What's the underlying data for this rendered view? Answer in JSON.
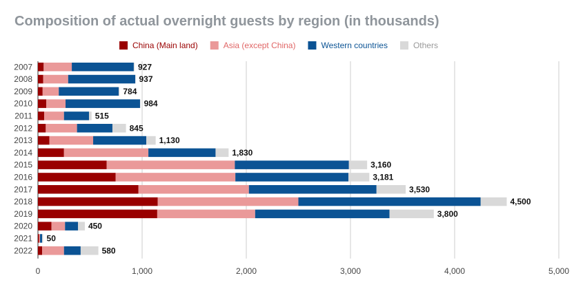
{
  "chart_data": {
    "type": "bar",
    "orientation": "horizontal",
    "stacked": true,
    "title": "Composition of actual overnight guests by region (in thousands)",
    "xlabel": "",
    "ylabel": "",
    "xlim": [
      0,
      5000
    ],
    "xticks": [
      0,
      1000,
      2000,
      3000,
      4000,
      5000
    ],
    "xtick_labels": [
      "0",
      "1,000",
      "2,000",
      "3,000",
      "4,000",
      "5,000"
    ],
    "grid": true,
    "legend_position": "top",
    "categories": [
      "2007",
      "2008",
      "2009",
      "2010",
      "2011",
      "2012",
      "2013",
      "2014",
      "2015",
      "2016",
      "2017",
      "2018",
      "2019",
      "2020",
      "2021",
      "2022"
    ],
    "series": [
      {
        "name": "China (Main land)",
        "color": "#990000",
        "values": [
          55,
          50,
          45,
          80,
          60,
          75,
          110,
          250,
          660,
          745,
          965,
          1150,
          1145,
          130,
          10,
          40
        ]
      },
      {
        "name": "Asia (except China)",
        "color": "#ea9999",
        "values": [
          270,
          240,
          155,
          185,
          190,
          300,
          420,
          810,
          1230,
          1150,
          1060,
          1350,
          940,
          130,
          10,
          210
        ]
      },
      {
        "name": "Western countries",
        "color": "#0b5394",
        "values": [
          595,
          645,
          575,
          715,
          240,
          340,
          510,
          645,
          1095,
          1085,
          1225,
          1750,
          1290,
          125,
          20,
          160
        ]
      },
      {
        "name": "Others",
        "color": "#d9d9d9",
        "values": [
          7,
          2,
          9,
          4,
          25,
          130,
          90,
          125,
          175,
          201,
          280,
          250,
          425,
          65,
          10,
          170
        ]
      }
    ],
    "totals": [
      927,
      937,
      784,
      984,
      515,
      845,
      1130,
      1830,
      3160,
      3181,
      3530,
      4500,
      3800,
      450,
      50,
      580
    ],
    "total_labels": [
      "927",
      "937",
      "784",
      "984",
      "515",
      "845",
      "1,130",
      "1,830",
      "3,160",
      "3,181",
      "3,530",
      "4,500",
      "3,800",
      "450",
      "50",
      "580"
    ],
    "legend_text_colors": [
      "#990000",
      "#e06666",
      "#0b5394",
      "#999999"
    ]
  }
}
